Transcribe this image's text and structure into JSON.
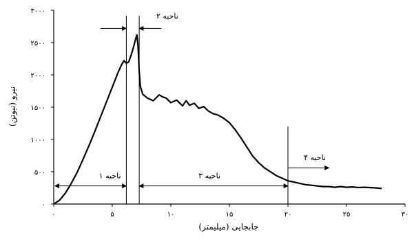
{
  "chart_data": {
    "type": "line",
    "xlabel": "جابجایی (میلیمتر)",
    "ylabel": "نیرو (نیوتن)",
    "xlim": [
      0,
      30
    ],
    "ylim": [
      0,
      3000
    ],
    "x_ticks": [
      0,
      5,
      10,
      15,
      20,
      25,
      30
    ],
    "x_tick_labels": [
      "۰",
      "۵",
      "۱۰",
      "۱۵",
      "۲۰",
      "۲۵",
      "۳۰"
    ],
    "y_ticks": [
      0,
      500,
      1000,
      1500,
      2000,
      2500,
      3000
    ],
    "y_tick_labels": [
      "۰",
      "۵۰۰",
      "۱۰۰۰",
      "۱۵۰۰",
      "۲۰۰۰",
      "۲۵۰۰",
      "۳۰۰۰"
    ],
    "grid": false,
    "series": [
      {
        "x": [
          0,
          0.5,
          1,
          1.5,
          2,
          2.5,
          3,
          3.5,
          4,
          4.5,
          5,
          5.5,
          5.8,
          6.0,
          6.2,
          6.4,
          6.6,
          6.8,
          7.0,
          7.1,
          7.2,
          7.3,
          7.4,
          7.6,
          8.0,
          8.5,
          9.0,
          9.3,
          9.6,
          10.0,
          10.5,
          11.0,
          11.3,
          11.6,
          12.0,
          12.4,
          12.8,
          13.2,
          13.6,
          14.0,
          14.5,
          15.0,
          15.5,
          16.0,
          16.5,
          17.0,
          17.5,
          18.0,
          18.5,
          19.0,
          19.5,
          20.0,
          20.5,
          21.0,
          21.5,
          22.0,
          22.5,
          23.0,
          23.5,
          24.0,
          24.5,
          25.0,
          25.5,
          26.0,
          26.5,
          27.0,
          27.5,
          28.0
        ],
        "y": [
          0,
          60,
          170,
          320,
          490,
          690,
          900,
          1120,
          1350,
          1580,
          1810,
          2040,
          2160,
          2220,
          2180,
          2200,
          2300,
          2420,
          2560,
          2620,
          2450,
          2050,
          1820,
          1700,
          1640,
          1600,
          1690,
          1660,
          1640,
          1570,
          1610,
          1520,
          1600,
          1530,
          1560,
          1480,
          1510,
          1440,
          1400,
          1380,
          1330,
          1260,
          1150,
          1020,
          880,
          740,
          640,
          560,
          500,
          440,
          400,
          360,
          340,
          320,
          300,
          290,
          280,
          270,
          270,
          260,
          270,
          260,
          265,
          255,
          260,
          255,
          250,
          240
        ]
      }
    ],
    "boundaries": [
      6.2,
      7.3,
      20.0
    ],
    "annotations": [
      {
        "text": "ناحیه ۱",
        "x": 4.8,
        "y": 400
      },
      {
        "text": "ناحیه ۲",
        "x": 9.7,
        "y": 2870
      },
      {
        "text": "ناحیه ۳",
        "x": 13.3,
        "y": 400
      },
      {
        "text": "ناحیه ۴",
        "x": 22.3,
        "y": 680
      }
    ],
    "arrows": [
      {
        "name": "region1-span-arrow",
        "from": 6.2,
        "to": 0.1,
        "y": 280,
        "heads": "both"
      },
      {
        "name": "region3-span-arrow",
        "from": 7.3,
        "to": 20.0,
        "y": 280,
        "heads": "both"
      },
      {
        "name": "region2-left-arrow",
        "from": 4.0,
        "to": 6.2,
        "y": 2720,
        "heads": "end"
      },
      {
        "name": "region2-right-arrow",
        "from": 9.2,
        "to": 7.3,
        "y": 2720,
        "heads": "end"
      },
      {
        "name": "region4-arrow",
        "from": 20.0,
        "to": 23.5,
        "y": 560,
        "heads": "end"
      }
    ]
  }
}
